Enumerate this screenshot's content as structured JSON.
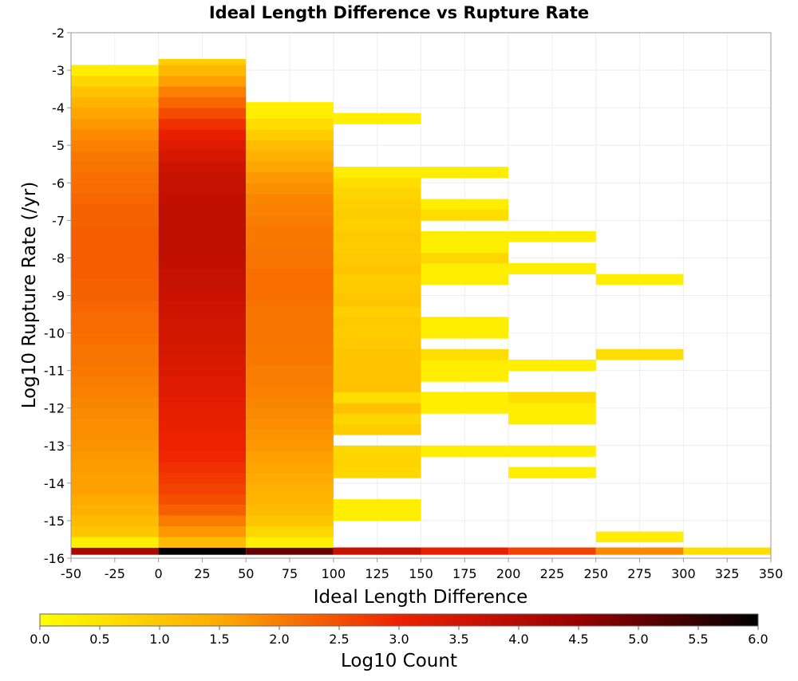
{
  "chart_data": {
    "type": "heatmap",
    "title": "Ideal Length Difference vs Rupture Rate",
    "xlabel": "Ideal Length Difference",
    "ylabel": "Log10 Rupture Rate (/yr)",
    "colorbar_label": "Log10 Count",
    "xlim": [
      -50,
      350
    ],
    "ylim": [
      -16,
      -2
    ],
    "x_ticks": [
      -50,
      -25,
      0,
      25,
      50,
      75,
      100,
      125,
      150,
      175,
      200,
      225,
      250,
      275,
      300,
      325,
      350
    ],
    "y_ticks": [
      -2,
      -3,
      -4,
      -5,
      -6,
      -7,
      -8,
      -9,
      -10,
      -11,
      -12,
      -13,
      -14,
      -15,
      -16
    ],
    "x_tick_labels": [
      "-50",
      "-25",
      "0",
      "25",
      "50",
      "75",
      "100",
      "125",
      "150",
      "175",
      "200",
      "225",
      "250",
      "275",
      "300",
      "325",
      "350"
    ],
    "y_tick_labels": [
      "-2",
      "-3",
      "-4",
      "-5",
      "-6",
      "-7",
      "-8",
      "-9",
      "-10",
      "-11",
      "-12",
      "-13",
      "-14",
      "-15",
      "-16"
    ],
    "color_range": [
      0,
      6
    ],
    "colorbar_ticks": [
      "0.0",
      "0.5",
      "1.0",
      "1.5",
      "2.0",
      "2.5",
      "3.0",
      "3.5",
      "4.0",
      "4.5",
      "5.0",
      "5.5",
      "6.0"
    ],
    "colorbar_tick_values": [
      0,
      0.5,
      1,
      1.5,
      2,
      2.5,
      3,
      3.5,
      4,
      4.5,
      5,
      5.5,
      6
    ],
    "colormap": [
      "#ffff00",
      "#ffaa00",
      "#ee2200",
      "#990000",
      "#000000"
    ],
    "grid": true,
    "legend": "colorbar-bottom",
    "x_bin_width": 50,
    "y_bin_height": 0.2857,
    "columns": [
      {
        "x_start": -50,
        "x_end": 0,
        "cells": [
          [
            -15.9,
            -15.714,
            4.2
          ],
          [
            -15.714,
            -15.429,
            0.3
          ],
          [
            -15.429,
            -15.143,
            1.0
          ],
          [
            -15.143,
            -14.857,
            1.2
          ],
          [
            -14.857,
            -14.571,
            1.4
          ],
          [
            -14.571,
            -14.286,
            1.5
          ],
          [
            -14.286,
            -14.0,
            1.6
          ],
          [
            -14.0,
            -13.714,
            1.6
          ],
          [
            -13.714,
            -13.429,
            1.65
          ],
          [
            -13.429,
            -13.143,
            1.7
          ],
          [
            -13.143,
            -12.857,
            1.75
          ],
          [
            -12.857,
            -12.571,
            1.8
          ],
          [
            -12.571,
            -12.286,
            1.8
          ],
          [
            -12.286,
            -12.0,
            1.85
          ],
          [
            -12.0,
            -11.714,
            1.9
          ],
          [
            -11.714,
            -11.429,
            1.95
          ],
          [
            -11.429,
            -11.143,
            2.0
          ],
          [
            -11.143,
            -10.857,
            2.05
          ],
          [
            -10.857,
            -10.571,
            2.1
          ],
          [
            -10.571,
            -10.286,
            2.1
          ],
          [
            -10.286,
            -10.0,
            2.15
          ],
          [
            -10.0,
            -9.714,
            2.2
          ],
          [
            -9.714,
            -9.429,
            2.2
          ],
          [
            -9.429,
            -9.143,
            2.25
          ],
          [
            -9.143,
            -8.857,
            2.3
          ],
          [
            -8.857,
            -8.571,
            2.3
          ],
          [
            -8.571,
            -8.286,
            2.35
          ],
          [
            -8.286,
            -8.0,
            2.35
          ],
          [
            -8.0,
            -7.714,
            2.35
          ],
          [
            -7.714,
            -7.429,
            2.35
          ],
          [
            -7.429,
            -7.143,
            2.35
          ],
          [
            -7.143,
            -6.857,
            2.3
          ],
          [
            -6.857,
            -6.571,
            2.3
          ],
          [
            -6.571,
            -6.286,
            2.25
          ],
          [
            -6.286,
            -6.0,
            2.2
          ],
          [
            -6.0,
            -5.714,
            2.15
          ],
          [
            -5.714,
            -5.429,
            2.1
          ],
          [
            -5.429,
            -5.143,
            2.05
          ],
          [
            -5.143,
            -4.857,
            1.95
          ],
          [
            -4.857,
            -4.571,
            1.85
          ],
          [
            -4.571,
            -4.286,
            1.7
          ],
          [
            -4.286,
            -4.0,
            1.55
          ],
          [
            -4.0,
            -3.714,
            1.35
          ],
          [
            -3.714,
            -3.429,
            1.1
          ],
          [
            -3.429,
            -3.143,
            0.7
          ],
          [
            -3.143,
            -2.857,
            0.3
          ]
        ]
      },
      {
        "x_start": 0,
        "x_end": 50,
        "cells": [
          [
            -15.9,
            -15.714,
            6.0
          ],
          [
            -15.714,
            -15.429,
            1.2
          ],
          [
            -15.429,
            -15.143,
            1.7
          ],
          [
            -15.143,
            -14.857,
            2.0
          ],
          [
            -14.857,
            -14.571,
            2.3
          ],
          [
            -14.571,
            -14.286,
            2.5
          ],
          [
            -14.286,
            -14.0,
            2.65
          ],
          [
            -14.0,
            -13.714,
            2.75
          ],
          [
            -13.714,
            -13.429,
            2.85
          ],
          [
            -13.429,
            -13.143,
            2.95
          ],
          [
            -13.143,
            -12.857,
            3.0
          ],
          [
            -12.857,
            -12.571,
            3.05
          ],
          [
            -12.571,
            -12.286,
            3.1
          ],
          [
            -12.286,
            -12.0,
            3.15
          ],
          [
            -12.0,
            -11.714,
            3.2
          ],
          [
            -11.714,
            -11.429,
            3.25
          ],
          [
            -11.429,
            -11.143,
            3.3
          ],
          [
            -11.143,
            -10.857,
            3.35
          ],
          [
            -10.857,
            -10.571,
            3.4
          ],
          [
            -10.571,
            -10.286,
            3.45
          ],
          [
            -10.286,
            -10.0,
            3.5
          ],
          [
            -10.0,
            -9.714,
            3.5
          ],
          [
            -9.714,
            -9.429,
            3.55
          ],
          [
            -9.429,
            -9.143,
            3.6
          ],
          [
            -9.143,
            -8.857,
            3.65
          ],
          [
            -8.857,
            -8.571,
            3.7
          ],
          [
            -8.571,
            -8.286,
            3.75
          ],
          [
            -8.286,
            -8.0,
            3.8
          ],
          [
            -8.0,
            -7.714,
            3.85
          ],
          [
            -7.714,
            -7.429,
            3.85
          ],
          [
            -7.429,
            -7.143,
            3.85
          ],
          [
            -7.143,
            -6.857,
            3.85
          ],
          [
            -6.857,
            -6.571,
            3.85
          ],
          [
            -6.571,
            -6.286,
            3.8
          ],
          [
            -6.286,
            -6.0,
            3.75
          ],
          [
            -6.0,
            -5.714,
            3.7
          ],
          [
            -5.714,
            -5.429,
            3.6
          ],
          [
            -5.429,
            -5.143,
            3.45
          ],
          [
            -5.143,
            -4.857,
            3.3
          ],
          [
            -4.857,
            -4.571,
            3.1
          ],
          [
            -4.571,
            -4.286,
            2.85
          ],
          [
            -4.286,
            -4.0,
            2.55
          ],
          [
            -4.0,
            -3.714,
            2.25
          ],
          [
            -3.714,
            -3.429,
            1.95
          ],
          [
            -3.429,
            -3.143,
            1.6
          ],
          [
            -3.143,
            -2.857,
            1.25
          ],
          [
            -2.857,
            -2.7,
            0.85
          ]
        ]
      },
      {
        "x_start": 50,
        "x_end": 100,
        "cells": [
          [
            -15.9,
            -15.714,
            5.0
          ],
          [
            -15.714,
            -15.429,
            0.3
          ],
          [
            -15.429,
            -15.143,
            0.7
          ],
          [
            -15.143,
            -14.857,
            1.0
          ],
          [
            -14.857,
            -14.571,
            1.2
          ],
          [
            -14.571,
            -14.286,
            1.3
          ],
          [
            -14.286,
            -14.0,
            1.4
          ],
          [
            -14.0,
            -13.714,
            1.5
          ],
          [
            -13.714,
            -13.429,
            1.55
          ],
          [
            -13.429,
            -13.143,
            1.6
          ],
          [
            -13.143,
            -12.857,
            1.7
          ],
          [
            -12.857,
            -12.571,
            1.75
          ],
          [
            -12.571,
            -12.286,
            1.8
          ],
          [
            -12.286,
            -12.0,
            1.85
          ],
          [
            -12.0,
            -11.714,
            1.9
          ],
          [
            -11.714,
            -11.429,
            1.95
          ],
          [
            -11.429,
            -11.143,
            2.0
          ],
          [
            -11.143,
            -10.857,
            2.0
          ],
          [
            -10.857,
            -10.571,
            2.05
          ],
          [
            -10.571,
            -10.286,
            2.05
          ],
          [
            -10.286,
            -10.0,
            2.1
          ],
          [
            -10.0,
            -9.714,
            2.1
          ],
          [
            -9.714,
            -9.429,
            2.1
          ],
          [
            -9.429,
            -9.143,
            2.1
          ],
          [
            -9.143,
            -8.857,
            2.15
          ],
          [
            -8.857,
            -8.571,
            2.15
          ],
          [
            -8.571,
            -8.286,
            2.15
          ],
          [
            -8.286,
            -8.0,
            2.1
          ],
          [
            -8.0,
            -7.714,
            2.1
          ],
          [
            -7.714,
            -7.429,
            2.05
          ],
          [
            -7.429,
            -7.143,
            2.05
          ],
          [
            -7.143,
            -6.857,
            2.0
          ],
          [
            -6.857,
            -6.571,
            1.95
          ],
          [
            -6.571,
            -6.286,
            1.9
          ],
          [
            -6.286,
            -6.0,
            1.8
          ],
          [
            -6.0,
            -5.714,
            1.7
          ],
          [
            -5.714,
            -5.429,
            1.55
          ],
          [
            -5.429,
            -5.143,
            1.4
          ],
          [
            -5.143,
            -4.857,
            1.2
          ],
          [
            -4.857,
            -4.571,
            0.9
          ],
          [
            -4.571,
            -4.286,
            0.6
          ],
          [
            -4.286,
            -4.0,
            0.3
          ],
          [
            -4.0,
            -3.85,
            0.3
          ]
        ]
      },
      {
        "x_start": 100,
        "x_end": 150,
        "cells": [
          [
            -15.9,
            -15.714,
            3.7
          ],
          [
            -15.0,
            -14.714,
            0.3
          ],
          [
            -14.714,
            -14.43,
            0.3
          ],
          [
            -13.86,
            -13.57,
            0.7
          ],
          [
            -13.57,
            -13.29,
            0.8
          ],
          [
            -13.29,
            -13.0,
            0.7
          ],
          [
            -12.71,
            -12.43,
            0.9
          ],
          [
            -12.43,
            -12.14,
            0.7
          ],
          [
            -12.14,
            -11.86,
            1.1
          ],
          [
            -11.86,
            -11.57,
            0.6
          ],
          [
            -11.57,
            -11.29,
            1.1
          ],
          [
            -11.29,
            -11.0,
            1.05
          ],
          [
            -11.0,
            -10.71,
            1.0
          ],
          [
            -10.71,
            -10.43,
            1.0
          ],
          [
            -10.43,
            -10.14,
            0.95
          ],
          [
            -10.14,
            -9.86,
            0.9
          ],
          [
            -9.86,
            -9.57,
            0.95
          ],
          [
            -9.57,
            -9.29,
            0.85
          ],
          [
            -9.29,
            -9.0,
            1.0
          ],
          [
            -9.0,
            -8.71,
            0.95
          ],
          [
            -8.71,
            -8.43,
            0.9
          ],
          [
            -8.43,
            -8.14,
            1.0
          ],
          [
            -8.14,
            -7.86,
            0.95
          ],
          [
            -7.86,
            -7.57,
            0.9
          ],
          [
            -7.57,
            -7.29,
            0.95
          ],
          [
            -7.29,
            -7.0,
            0.85
          ],
          [
            -7.0,
            -6.71,
            0.9
          ],
          [
            -6.71,
            -6.43,
            0.85
          ],
          [
            -6.43,
            -6.14,
            0.75
          ],
          [
            -6.14,
            -5.86,
            0.6
          ],
          [
            -5.86,
            -5.57,
            0.3
          ],
          [
            -4.43,
            -4.14,
            0.3
          ]
        ]
      },
      {
        "x_start": 150,
        "x_end": 200,
        "cells": [
          [
            -15.9,
            -15.714,
            3.1
          ],
          [
            -13.29,
            -13.0,
            0.3
          ],
          [
            -12.14,
            -11.86,
            0.3
          ],
          [
            -11.86,
            -11.57,
            0.3
          ],
          [
            -11.29,
            -11.0,
            0.3
          ],
          [
            -11.0,
            -10.71,
            0.3
          ],
          [
            -10.71,
            -10.43,
            0.6
          ],
          [
            -10.14,
            -9.86,
            0.3
          ],
          [
            -9.86,
            -9.57,
            0.3
          ],
          [
            -8.71,
            -8.43,
            0.3
          ],
          [
            -8.43,
            -8.14,
            0.3
          ],
          [
            -8.14,
            -7.86,
            0.7
          ],
          [
            -7.86,
            -7.57,
            0.3
          ],
          [
            -7.57,
            -7.29,
            0.3
          ],
          [
            -7.0,
            -6.71,
            0.6
          ],
          [
            -6.71,
            -6.43,
            0.3
          ],
          [
            -5.86,
            -5.57,
            0.3
          ]
        ]
      },
      {
        "x_start": 200,
        "x_end": 250,
        "cells": [
          [
            -15.9,
            -15.714,
            2.65
          ],
          [
            -13.86,
            -13.57,
            0.3
          ],
          [
            -13.29,
            -13.0,
            0.3
          ],
          [
            -12.43,
            -12.14,
            0.3
          ],
          [
            -12.14,
            -11.86,
            0.3
          ],
          [
            -11.86,
            -11.57,
            0.6
          ],
          [
            -11.0,
            -10.71,
            0.3
          ],
          [
            -8.43,
            -8.14,
            0.3
          ],
          [
            -7.57,
            -7.29,
            0.3
          ]
        ]
      },
      {
        "x_start": 250,
        "x_end": 300,
        "cells": [
          [
            -15.9,
            -15.714,
            1.85
          ],
          [
            -15.57,
            -15.29,
            0.3
          ],
          [
            -10.71,
            -10.43,
            0.6
          ],
          [
            -8.71,
            -8.43,
            0.3
          ]
        ]
      },
      {
        "x_start": 300,
        "x_end": 350,
        "cells": [
          [
            -15.9,
            -15.714,
            0.6
          ]
        ]
      }
    ]
  }
}
